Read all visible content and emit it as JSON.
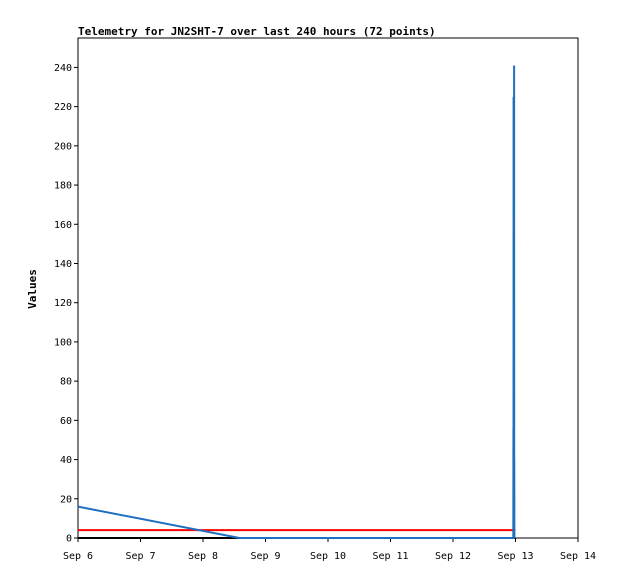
{
  "chart_data": {
    "type": "line",
    "title": "Telemetry for JN2SHT-7 over last 240 hours (72 points)",
    "ylabel": "Values",
    "xlabel": "",
    "xlim": [
      "2017-09-06T00:00",
      "2017-09-14T00:00"
    ],
    "ylim": [
      0,
      255
    ],
    "y_ticks": [
      0,
      20,
      40,
      60,
      80,
      100,
      120,
      140,
      160,
      180,
      200,
      220,
      240
    ],
    "x_ticks": [
      {
        "t": "2017-09-06T00:00",
        "label": "Sep 6"
      },
      {
        "t": "2017-09-07T00:00",
        "label": "Sep 7"
      },
      {
        "t": "2017-09-08T00:00",
        "label": "Sep 8"
      },
      {
        "t": "2017-09-09T00:00",
        "label": "Sep 9"
      },
      {
        "t": "2017-09-10T00:00",
        "label": "Sep 10"
      },
      {
        "t": "2017-09-11T00:00",
        "label": "Sep 11"
      },
      {
        "t": "2017-09-12T00:00",
        "label": "Sep 12"
      },
      {
        "t": "2017-09-13T00:00",
        "label": "Sep 13"
      },
      {
        "t": "2017-09-14T00:00",
        "label": "Sep 14"
      }
    ],
    "grid": false,
    "legend": "none",
    "series": [
      {
        "color": "#000000",
        "points": [
          {
            "t": "2017-09-06T00:00",
            "y": 0
          },
          {
            "t": "2017-09-13T00:00",
            "y": 0
          }
        ]
      },
      {
        "color": "#ff0000",
        "points": [
          {
            "t": "2017-09-06T00:00",
            "y": 4
          },
          {
            "t": "2017-09-13T00:00",
            "y": 4
          }
        ]
      },
      {
        "color": "#1f6fbf",
        "points": [
          {
            "t": "2017-09-06T00:00",
            "y": 16
          },
          {
            "t": "2017-09-08T14:00",
            "y": 0
          },
          {
            "t": "2017-09-12T23:10",
            "y": 0
          },
          {
            "t": "2017-09-12T23:12",
            "y": 56
          },
          {
            "t": "2017-09-12T23:14",
            "y": 0
          },
          {
            "t": "2017-09-12T23:16",
            "y": 225
          },
          {
            "t": "2017-09-12T23:18",
            "y": 0
          },
          {
            "t": "2017-09-12T23:20",
            "y": 97
          },
          {
            "t": "2017-09-12T23:22",
            "y": 0
          },
          {
            "t": "2017-09-12T23:24",
            "y": 64
          },
          {
            "t": "2017-09-12T23:26",
            "y": 0
          },
          {
            "t": "2017-09-12T23:28",
            "y": 241
          },
          {
            "t": "2017-09-12T23:30",
            "y": 0
          },
          {
            "t": "2017-09-12T23:32",
            "y": 40
          },
          {
            "t": "2017-09-12T23:34",
            "y": 0
          },
          {
            "t": "2017-09-12T23:38",
            "y": 0
          }
        ]
      }
    ]
  }
}
